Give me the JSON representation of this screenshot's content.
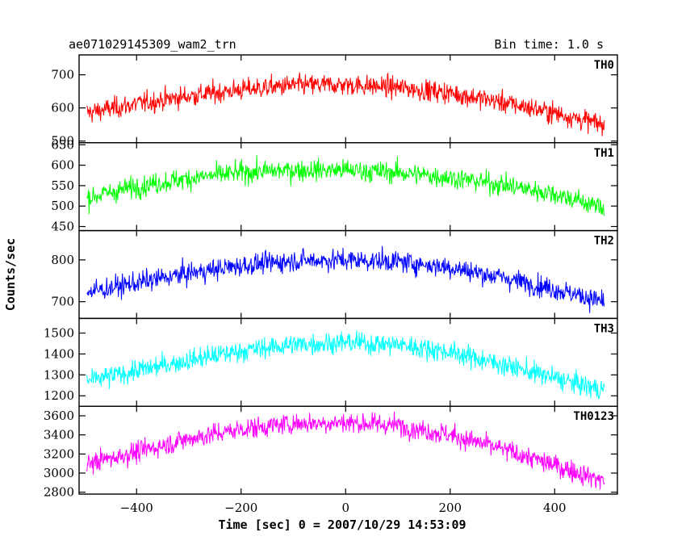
{
  "header": {
    "title": "ae071029145309_wam2_trn",
    "bin_time": "Bin time: 1.0 s"
  },
  "chart_data": {
    "type": "line",
    "title": "ae071029145309_wam2_trn",
    "subtitle": "Bin time: 1.0 s",
    "xlabel": "Time [sec] 0 = 2007/10/29 14:53:09",
    "ylabel": "Counts/sec",
    "xlim": [
      -510,
      520
    ],
    "x_ticks": [
      -400,
      -200,
      0,
      200,
      400
    ],
    "grid": false,
    "panels": [
      {
        "label": "TH0",
        "color": "#ff0000",
        "ylim": [
          495,
          760
        ],
        "y_ticks": [
          500,
          600,
          700
        ],
        "x": [
          -495,
          -400,
          -300,
          -200,
          -100,
          0,
          100,
          200,
          300,
          400,
          495
        ],
        "values": [
          585,
          612,
          636,
          655,
          668,
          670,
          662,
          645,
          617,
          585,
          548
        ]
      },
      {
        "label": "TH1",
        "color": "#00ff00",
        "ylim": [
          440,
          655
        ],
        "y_ticks": [
          450,
          500,
          550,
          600,
          650
        ],
        "x": [
          -495,
          -400,
          -300,
          -200,
          -100,
          0,
          100,
          200,
          300,
          400,
          495
        ],
        "values": [
          520,
          548,
          568,
          582,
          588,
          588,
          582,
          570,
          552,
          530,
          495
        ]
      },
      {
        "label": "TH2",
        "color": "#0000ff",
        "ylim": [
          660,
          870
        ],
        "y_ticks": [
          700,
          800
        ],
        "x": [
          -495,
          -400,
          -300,
          -200,
          -100,
          0,
          100,
          200,
          300,
          400,
          495
        ],
        "values": [
          722,
          745,
          768,
          786,
          798,
          800,
          796,
          782,
          758,
          730,
          700
        ]
      },
      {
        "label": "TH3",
        "color": "#00ffff",
        "ylim": [
          1150,
          1570
        ],
        "y_ticks": [
          1200,
          1300,
          1400,
          1500
        ],
        "x": [
          -495,
          -400,
          -300,
          -200,
          -100,
          0,
          100,
          200,
          300,
          400,
          495
        ],
        "values": [
          1270,
          1320,
          1370,
          1415,
          1445,
          1455,
          1445,
          1410,
          1350,
          1285,
          1225
        ]
      },
      {
        "label": "TH0123",
        "color": "#ff00ff",
        "ylim": [
          2780,
          3700
        ],
        "y_ticks": [
          2800,
          3000,
          3200,
          3400,
          3600
        ],
        "x": [
          -495,
          -400,
          -300,
          -200,
          -100,
          0,
          100,
          200,
          300,
          400,
          495
        ],
        "values": [
          3100,
          3220,
          3360,
          3460,
          3520,
          3530,
          3500,
          3400,
          3250,
          3080,
          2920
        ]
      }
    ]
  }
}
